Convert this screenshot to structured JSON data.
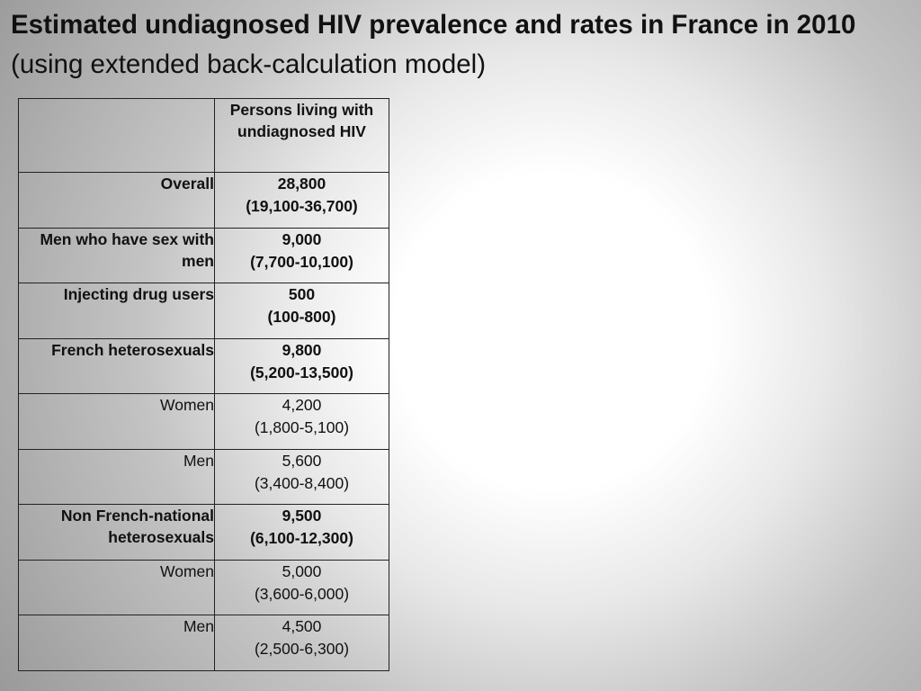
{
  "title": {
    "bold": "Estimated undiagnosed HIV prevalence and rates in France in 2010",
    "normal": "(using extended back-calculation model)"
  },
  "table": {
    "header": {
      "col1": "",
      "col2": "Persons living with undiagnosed HIV"
    },
    "rows": [
      {
        "label": "Overall",
        "estimate": "28,800",
        "range": "(19,100-36,700)",
        "bold": true
      },
      {
        "label": "Men who have sex with men",
        "estimate": "9,000",
        "range": "(7,700-10,100)",
        "bold": true
      },
      {
        "label": "Injecting drug users",
        "estimate": "500",
        "range": "(100-800)",
        "bold": true
      },
      {
        "label": "French heterosexuals",
        "estimate": "9,800",
        "range": "(5,200-13,500)",
        "bold": true
      },
      {
        "label": "Women",
        "estimate": "4,200",
        "range": "(1,800-5,100)",
        "bold": false
      },
      {
        "label": "Men",
        "estimate": "5,600",
        "range": "(3,400-8,400)",
        "bold": false
      },
      {
        "label": "Non French-national heterosexuals",
        "estimate": "9,500",
        "range": "(6,100-12,300)",
        "bold": true
      },
      {
        "label": "Women",
        "estimate": "5,000",
        "range": "(3,600-6,000)",
        "bold": false
      },
      {
        "label": "Men",
        "estimate": "4,500",
        "range": "(2,500-6,300)",
        "bold": false
      }
    ]
  }
}
